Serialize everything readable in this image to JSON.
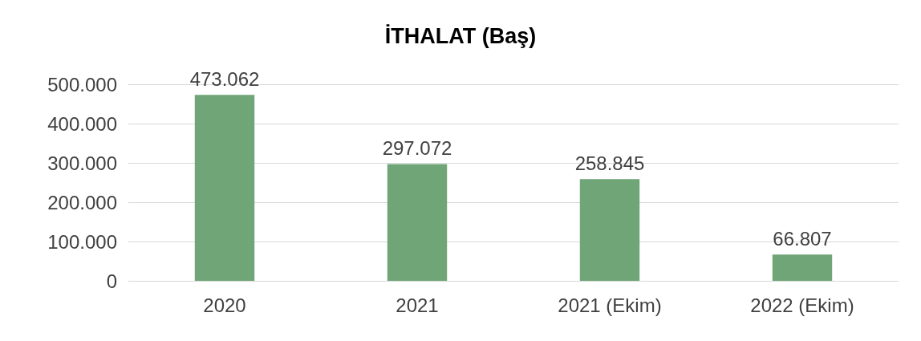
{
  "chart_data": {
    "type": "bar",
    "title": "İTHALAT (Baş)",
    "categories": [
      "2020",
      "2021",
      "2021 (Ekim)",
      "2022 (Ekim)"
    ],
    "values": [
      473062,
      297072,
      258845,
      66807
    ],
    "value_labels": [
      "473.062",
      "297.072",
      "258.845",
      "66.807"
    ],
    "color": "#70a577",
    "ylim": [
      0,
      500000
    ],
    "yticks": [
      {
        "value": 0,
        "label": "0"
      },
      {
        "value": 100000,
        "label": "100.000"
      },
      {
        "value": 200000,
        "label": "200.000"
      },
      {
        "value": 300000,
        "label": "300.000"
      },
      {
        "value": 400000,
        "label": "400.000"
      },
      {
        "value": 500000,
        "label": "500.000"
      }
    ],
    "grid": "y"
  }
}
